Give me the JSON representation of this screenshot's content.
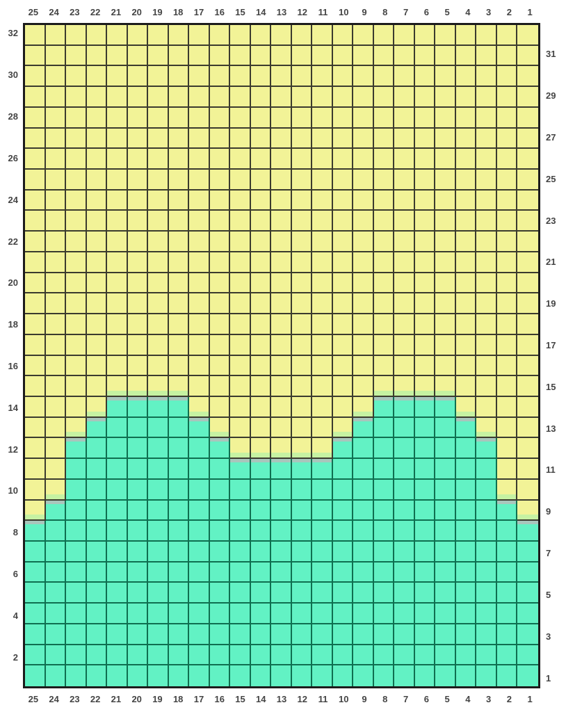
{
  "colors": {
    "yellow": "#F2F397",
    "teal": "#62F2C4",
    "light_green_strip": "#C6F2A2",
    "gray_strip": "#A9C6BC",
    "grid_line_yellow_region": "#3B3B2E",
    "grid_line_teal_region": "#0F6F50",
    "outer_border": "#1C1C1C",
    "label_text": "#444444",
    "background": "#FFFFFF"
  },
  "chart_data": {
    "type": "heatmap",
    "title": "",
    "description": "Colorwork grid chart, 25 stitch columns by 32 rows. Yellow field with a teal two-hump wave motif rising from the bottom. Transition cells show a gray strip at the top of the first teal cell and a light-green strip at the bottom of the yellow cell directly above it.",
    "grid": {
      "columns": 25,
      "rows": 32
    },
    "column_labels_top": [
      "25",
      "24",
      "23",
      "22",
      "21",
      "20",
      "19",
      "18",
      "17",
      "16",
      "15",
      "14",
      "13",
      "12",
      "11",
      "10",
      "9",
      "8",
      "7",
      "6",
      "5",
      "4",
      "3",
      "2",
      "1"
    ],
    "column_labels_bottom": [
      "25",
      "24",
      "23",
      "22",
      "21",
      "20",
      "19",
      "18",
      "17",
      "16",
      "15",
      "14",
      "13",
      "12",
      "11",
      "10",
      "9",
      "8",
      "7",
      "6",
      "5",
      "4",
      "3",
      "2",
      "1"
    ],
    "row_labels_left": [
      "32",
      "30",
      "28",
      "26",
      "24",
      "22",
      "20",
      "18",
      "16",
      "14",
      "12",
      "10",
      "8",
      "6",
      "4",
      "2"
    ],
    "row_labels_right": [
      "31",
      "29",
      "27",
      "25",
      "23",
      "21",
      "19",
      "17",
      "15",
      "13",
      "11",
      "9",
      "7",
      "5",
      "3",
      "1"
    ],
    "teal_top_row_by_column": {
      "25": 8,
      "24": 9,
      "23": 12,
      "22": 13,
      "21": 14,
      "20": 14,
      "19": 14,
      "18": 14,
      "17": 13,
      "16": 12,
      "15": 11,
      "14": 11,
      "13": 11,
      "12": 11,
      "11": 11,
      "10": 12,
      "9": 13,
      "8": 14,
      "7": 14,
      "6": 14,
      "5": 14,
      "4": 13,
      "3": 12,
      "2": 9,
      "1": 8
    },
    "cell_legend": {
      "y": "yellow cell",
      "yl": "yellow cell with light-green bottom strip (row above first teal row)",
      "tg": "teal cell with gray top strip (first teal row of column)",
      "t": "teal cell"
    },
    "legend_position": "none",
    "gridlines": "on"
  }
}
